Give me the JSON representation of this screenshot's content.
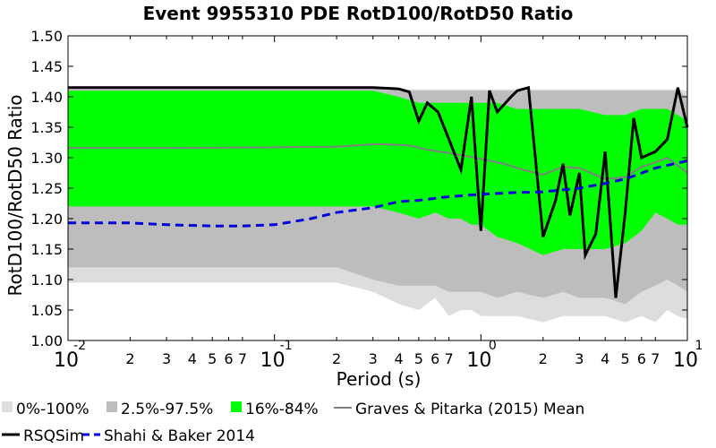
{
  "chart_data": {
    "type": "area",
    "title": "Event 9955310 PDE RotD100/RotD50 Ratio",
    "xlabel": "Period (s)",
    "ylabel": "RotD100/RotD50 Ratio",
    "xscale": "log",
    "xlim": [
      0.01,
      10
    ],
    "ylim": [
      1.0,
      1.5
    ],
    "grid": false,
    "legend_placement": "bottom",
    "y_ticks": [
      "1.00",
      "1.05",
      "1.10",
      "1.15",
      "1.20",
      "1.25",
      "1.30",
      "1.35",
      "1.40",
      "1.45",
      "1.50"
    ],
    "x_major_ticks": [
      {
        "base": "10",
        "exp": "-2"
      },
      {
        "base": "10",
        "exp": "-1"
      },
      {
        "base": "10",
        "exp": "0"
      },
      {
        "base": "10",
        "exp": "1"
      }
    ],
    "x_minor_labels": [
      "2",
      "3",
      "4",
      "5",
      "6",
      "7"
    ],
    "colors": {
      "band_0_100": "#dddddd",
      "band_2_97": "#bdbdbd",
      "band_16_84": "#00ff00",
      "graves_mean": "#808080",
      "rsqsim": "#000000",
      "shahi_baker": "#0000dd"
    },
    "bands": {
      "x": [
        0.01,
        0.03,
        0.1,
        0.2,
        0.3,
        0.4,
        0.5,
        0.6,
        0.7,
        0.8,
        0.9,
        1.0,
        1.2,
        1.5,
        2.0,
        2.5,
        3.0,
        4.0,
        5.0,
        6.0,
        7.0,
        8.0,
        9.0,
        10.0
      ],
      "p0_low": [
        1.095,
        1.095,
        1.095,
        1.095,
        1.08,
        1.06,
        1.05,
        1.07,
        1.04,
        1.05,
        1.05,
        1.04,
        1.04,
        1.04,
        1.03,
        1.04,
        1.04,
        1.04,
        1.03,
        1.04,
        1.03,
        1.05,
        1.04,
        1.035
      ],
      "p100_high": [
        1.415,
        1.415,
        1.415,
        1.415,
        1.415,
        1.412,
        1.412,
        1.412,
        1.412,
        1.412,
        1.412,
        1.412,
        1.412,
        1.412,
        1.412,
        1.412,
        1.412,
        1.412,
        1.412,
        1.412,
        1.412,
        1.412,
        1.412,
        1.41
      ],
      "p2_low": [
        1.12,
        1.12,
        1.12,
        1.12,
        1.1,
        1.09,
        1.09,
        1.09,
        1.08,
        1.08,
        1.08,
        1.08,
        1.07,
        1.08,
        1.07,
        1.08,
        1.07,
        1.07,
        1.06,
        1.08,
        1.09,
        1.1,
        1.09,
        1.08
      ],
      "p97_high": [
        1.412,
        1.412,
        1.412,
        1.412,
        1.412,
        1.41,
        1.41,
        1.41,
        1.41,
        1.41,
        1.41,
        1.41,
        1.41,
        1.41,
        1.41,
        1.41,
        1.41,
        1.41,
        1.41,
        1.41,
        1.41,
        1.41,
        1.41,
        1.4
      ],
      "p16_low": [
        1.22,
        1.22,
        1.22,
        1.22,
        1.22,
        1.21,
        1.2,
        1.21,
        1.2,
        1.2,
        1.19,
        1.19,
        1.17,
        1.16,
        1.14,
        1.15,
        1.15,
        1.15,
        1.16,
        1.18,
        1.21,
        1.2,
        1.19,
        1.19
      ],
      "p84_high": [
        1.41,
        1.41,
        1.41,
        1.41,
        1.41,
        1.4,
        1.39,
        1.39,
        1.39,
        1.39,
        1.39,
        1.39,
        1.39,
        1.38,
        1.38,
        1.38,
        1.38,
        1.37,
        1.37,
        1.38,
        1.38,
        1.38,
        1.37,
        1.36
      ]
    },
    "series": [
      {
        "name": "Graves & Pitarka (2015) Mean",
        "x": [
          0.01,
          0.03,
          0.1,
          0.2,
          0.3,
          0.35,
          0.45,
          0.55,
          0.7,
          1.0,
          1.3,
          1.6,
          2.0,
          2.5,
          3.0,
          4.0,
          5.0,
          6.0,
          7.0,
          8.0,
          10.0
        ],
        "values": [
          1.316,
          1.316,
          1.317,
          1.318,
          1.322,
          1.322,
          1.32,
          1.313,
          1.308,
          1.298,
          1.29,
          1.28,
          1.272,
          1.285,
          1.283,
          1.265,
          1.268,
          1.285,
          1.292,
          1.3,
          1.275
        ]
      },
      {
        "name": "RSQSim",
        "x": [
          0.01,
          0.03,
          0.1,
          0.2,
          0.3,
          0.35,
          0.4,
          0.45,
          0.5,
          0.55,
          0.62,
          0.7,
          0.8,
          0.9,
          1.0,
          1.1,
          1.2,
          1.4,
          1.5,
          1.7,
          2.0,
          2.3,
          2.5,
          2.7,
          3.0,
          3.2,
          3.6,
          4.0,
          4.5,
          5.0,
          5.5,
          6.0,
          7.0,
          8.0,
          9.0,
          10.0
        ],
        "values": [
          1.415,
          1.415,
          1.415,
          1.415,
          1.415,
          1.414,
          1.413,
          1.408,
          1.36,
          1.39,
          1.375,
          1.33,
          1.28,
          1.4,
          1.18,
          1.41,
          1.375,
          1.4,
          1.41,
          1.415,
          1.17,
          1.23,
          1.29,
          1.205,
          1.275,
          1.14,
          1.175,
          1.31,
          1.07,
          1.21,
          1.365,
          1.3,
          1.31,
          1.33,
          1.415,
          1.35
        ]
      },
      {
        "name": "Shahi & Baker 2014",
        "x": [
          0.01,
          0.02,
          0.03,
          0.05,
          0.07,
          0.1,
          0.15,
          0.2,
          0.3,
          0.4,
          0.5,
          0.7,
          1.0,
          1.5,
          2.0,
          3.0,
          4.0,
          5.0,
          7.0,
          10.0
        ],
        "values": [
          1.193,
          1.193,
          1.19,
          1.188,
          1.188,
          1.19,
          1.2,
          1.21,
          1.218,
          1.228,
          1.23,
          1.236,
          1.24,
          1.243,
          1.244,
          1.25,
          1.258,
          1.265,
          1.283,
          1.295
        ]
      }
    ],
    "legend": [
      {
        "key": "band_0_100",
        "label": "0%-100%",
        "kind": "patch"
      },
      {
        "key": "band_2_97",
        "label": "2.5%-97.5%",
        "kind": "patch"
      },
      {
        "key": "band_16_84",
        "label": "16%-84%",
        "kind": "patch"
      },
      {
        "key": "graves_mean",
        "label": "Graves & Pitarka (2015) Mean",
        "kind": "line"
      },
      {
        "key": "rsqsim",
        "label": "RSQSim",
        "kind": "line"
      },
      {
        "key": "shahi_baker",
        "label": "Shahi & Baker 2014",
        "kind": "dashed"
      }
    ]
  }
}
